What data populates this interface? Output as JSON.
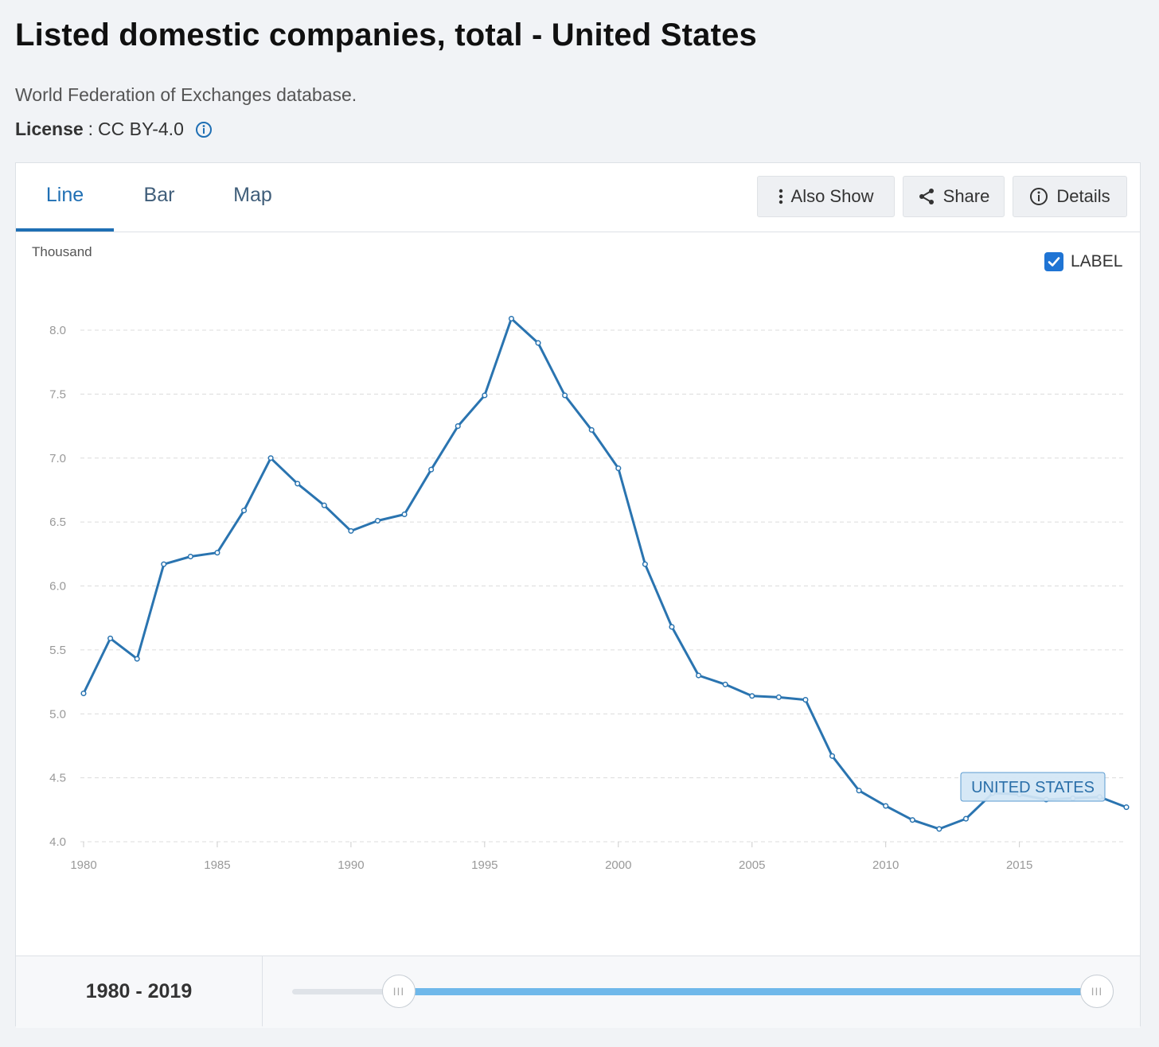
{
  "header": {
    "title": "Listed domestic companies, total - United States",
    "source": "World Federation of Exchanges database.",
    "license_label": "License",
    "license_sep": ":",
    "license_value": "CC BY-4.0"
  },
  "tabs": [
    {
      "label": "Line",
      "active": true
    },
    {
      "label": "Bar",
      "active": false
    },
    {
      "label": "Map",
      "active": false
    }
  ],
  "toolbar": {
    "also_show": "Also Show",
    "share": "Share",
    "details": "Details"
  },
  "label_toggle": {
    "label": "LABEL",
    "checked": true
  },
  "footer": {
    "range_start": "1980",
    "range_sep": " - ",
    "range_end": "2019",
    "handle_glyph": "III"
  },
  "colors": {
    "line": "#2a74b0",
    "accent": "#1f6fb4",
    "slider_fill": "#6fb8ea",
    "series_label_bg": "#d3e6f5"
  },
  "chart_data": {
    "type": "line",
    "ylabel": "Thousand",
    "ylim": [
      4.0,
      8.0
    ],
    "yticks": [
      "8.0",
      "7.5",
      "7.0",
      "6.5",
      "6.0",
      "5.5",
      "5.0",
      "4.5",
      "4.0"
    ],
    "xlim": [
      1980,
      2019
    ],
    "xticks": [
      "1980",
      "1985",
      "1990",
      "1995",
      "2000",
      "2005",
      "2010",
      "2015"
    ],
    "grid": true,
    "series": [
      {
        "name": "UNITED STATES",
        "x": [
          1980,
          1981,
          1982,
          1983,
          1984,
          1985,
          1986,
          1987,
          1988,
          1989,
          1990,
          1991,
          1992,
          1993,
          1994,
          1995,
          1996,
          1997,
          1998,
          1999,
          2000,
          2001,
          2002,
          2003,
          2004,
          2005,
          2006,
          2007,
          2008,
          2009,
          2010,
          2011,
          2012,
          2013,
          2014,
          2015,
          2016,
          2017,
          2018,
          2019
        ],
        "values": [
          5.16,
          5.59,
          5.43,
          6.17,
          6.23,
          6.26,
          6.59,
          7.0,
          6.8,
          6.63,
          6.43,
          6.51,
          6.56,
          6.91,
          7.25,
          7.49,
          8.09,
          7.9,
          7.49,
          7.22,
          6.92,
          6.17,
          5.68,
          5.3,
          5.23,
          5.14,
          5.13,
          5.11,
          4.67,
          4.4,
          4.28,
          4.17,
          4.1,
          4.18,
          4.38,
          4.37,
          4.33,
          4.34,
          4.35,
          4.27
        ]
      }
    ]
  }
}
